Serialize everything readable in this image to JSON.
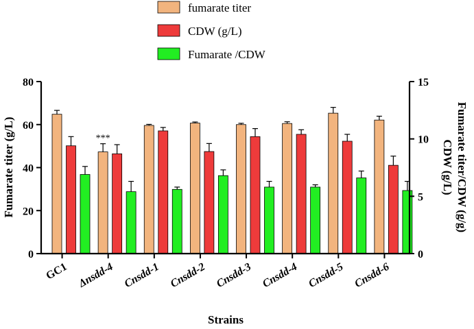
{
  "chart_data": {
    "type": "bar",
    "xlabel": "Strains",
    "ylabel_left": "Fumarate titer (g/L)",
    "ylabel_right": [
      "CDW (g/L)",
      "Fumarate titer/CDW (g/g)"
    ],
    "ylim_left": [
      0,
      80
    ],
    "ylim_right": [
      0,
      15
    ],
    "left_ticks": [
      0,
      20,
      40,
      60,
      80
    ],
    "right_ticks": [
      0,
      5,
      10,
      15
    ],
    "legend_position": "top-center",
    "grid": false,
    "categories": [
      {
        "label": "GC1",
        "italic": false
      },
      {
        "label": "Δnsdd-4",
        "italic": true
      },
      {
        "label": "Cnsdd-1",
        "italic": true
      },
      {
        "label": "Cnsdd-2",
        "italic": true
      },
      {
        "label": "Cnsdd-3",
        "italic": true
      },
      {
        "label": "Cnsdd-4",
        "italic": true
      },
      {
        "label": "Cnsdd-5",
        "italic": true
      },
      {
        "label": "Cnsdd-6",
        "italic": true
      }
    ],
    "series": [
      {
        "name": "fumarate titer",
        "color": "#f2b47e",
        "axis": "left",
        "values": [
          64.8,
          47.3,
          59.6,
          60.7,
          60.0,
          60.5,
          65.3,
          62.1
        ],
        "errors": [
          1.8,
          3.8,
          0.5,
          0.5,
          0.6,
          0.8,
          2.7,
          1.8
        ]
      },
      {
        "name": "CDW (g/L)",
        "color": "#ee3b3b",
        "axis": "right",
        "values": [
          9.4,
          8.7,
          10.7,
          8.9,
          10.2,
          10.4,
          9.8,
          7.7
        ],
        "errors": [
          0.8,
          0.8,
          0.3,
          0.7,
          0.7,
          0.4,
          0.6,
          0.8
        ]
      },
      {
        "name": "Fumarate /CDW",
        "color": "#22ee22",
        "axis": "right",
        "values": [
          6.9,
          5.4,
          5.6,
          6.8,
          5.8,
          5.8,
          6.6,
          5.5
        ],
        "errors": [
          0.7,
          0.9,
          0.2,
          0.5,
          0.5,
          0.2,
          0.6,
          0.8
        ]
      }
    ],
    "annotations": [
      {
        "text": "***",
        "category_index": 1
      }
    ]
  }
}
